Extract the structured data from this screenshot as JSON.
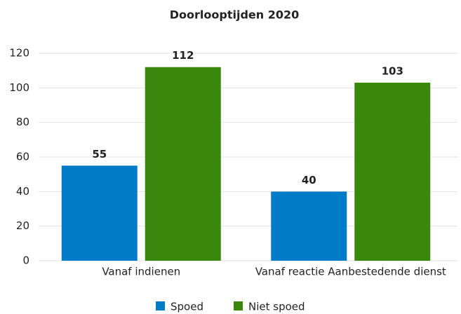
{
  "chart_data": {
    "type": "bar",
    "title": "Doorlooptijden 2020",
    "categories": [
      "Vanaf indienen",
      "Vanaf reactie Aanbestedende dienst"
    ],
    "series": [
      {
        "name": "Spoed",
        "color": "#007bc7",
        "values": [
          55,
          40
        ]
      },
      {
        "name": "Niet spoed",
        "color": "#39870c",
        "values": [
          112,
          103
        ]
      }
    ],
    "ylim": [
      0,
      120
    ],
    "yticks": [
      0,
      20,
      40,
      60,
      80,
      100,
      120
    ],
    "grid": true,
    "legend": "bottom"
  }
}
